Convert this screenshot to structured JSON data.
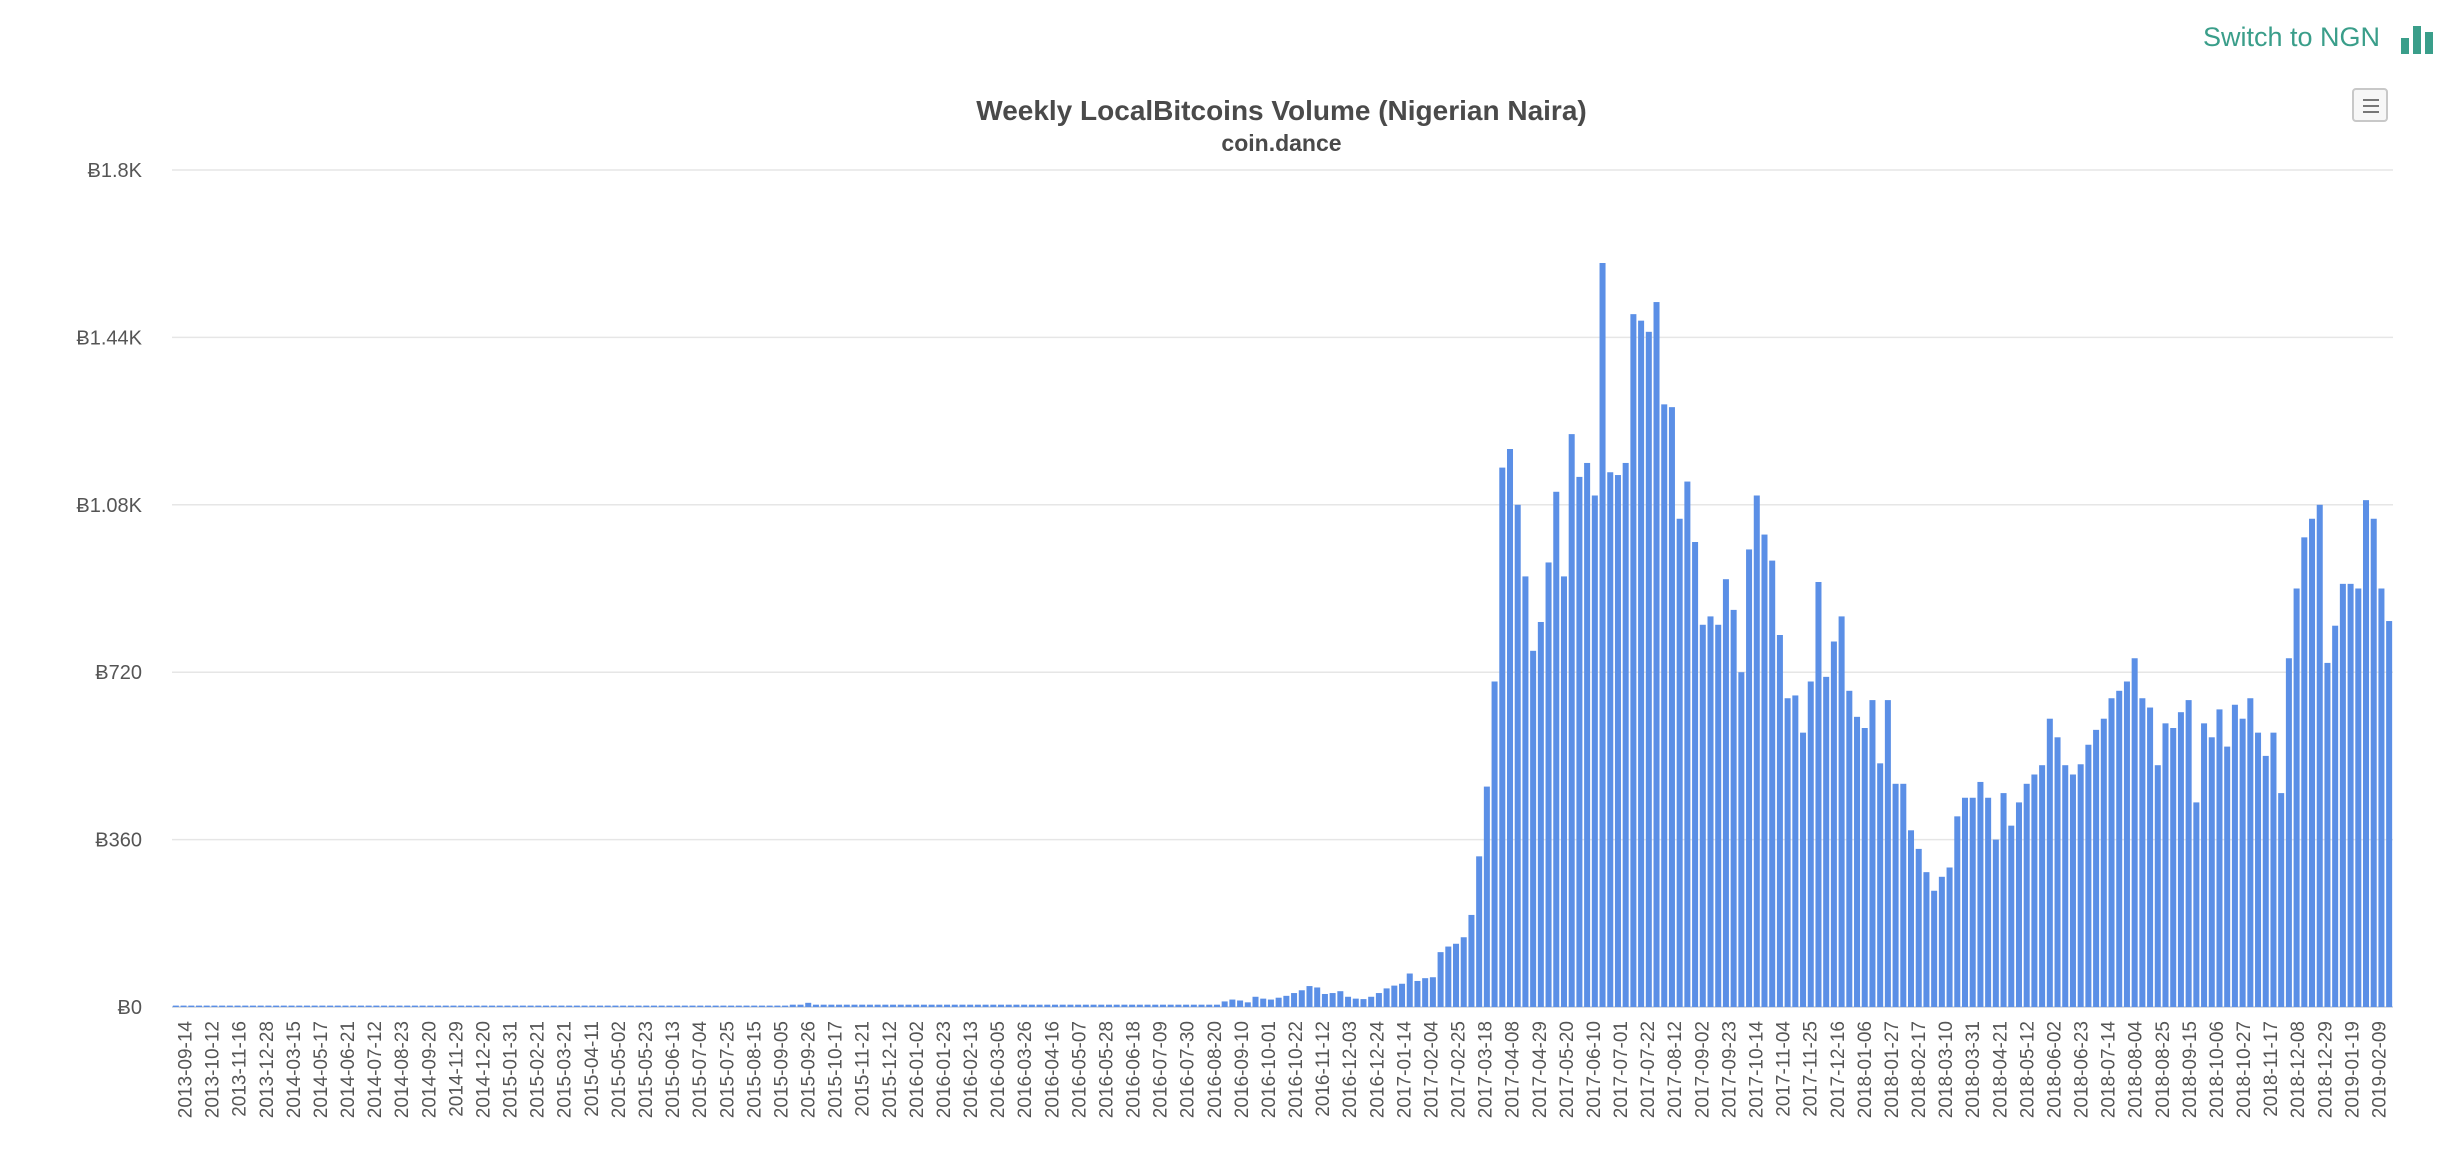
{
  "header": {
    "switch_label": "Switch to NGN",
    "switch_icon": "bar-chart-icon",
    "accent_color": "#3a9e8a"
  },
  "menu": {
    "icon": "hamburger-menu-icon"
  },
  "chart_data": {
    "type": "bar",
    "title": "Weekly LocalBitcoins Volume (Nigerian Naira)",
    "subtitle": "coin.dance",
    "bar_color": "#5b8fe6",
    "grid": true,
    "ylim": [
      0,
      1800
    ],
    "y_ticks": [
      0,
      360,
      720,
      1080,
      1440,
      1800
    ],
    "y_tick_labels": [
      "Ƀ0",
      "Ƀ360",
      "Ƀ720",
      "Ƀ1.08K",
      "Ƀ1.44K",
      "Ƀ1.8K"
    ],
    "x_tick_labels": [
      "2013-09-14",
      "2013-10-12",
      "2013-11-16",
      "2013-12-28",
      "2014-03-15",
      "2014-05-17",
      "2014-06-21",
      "2014-07-12",
      "2014-08-23",
      "2014-09-20",
      "2014-11-29",
      "2014-12-20",
      "2015-01-31",
      "2015-02-21",
      "2015-03-21",
      "2015-04-11",
      "2015-05-02",
      "2015-05-23",
      "2015-06-13",
      "2015-07-04",
      "2015-07-25",
      "2015-08-15",
      "2015-09-05",
      "2015-09-26",
      "2015-10-17",
      "2015-11-21",
      "2015-12-12",
      "2016-01-02",
      "2016-01-23",
      "2016-02-13",
      "2016-03-05",
      "2016-03-26",
      "2016-04-16",
      "2016-05-07",
      "2016-05-28",
      "2016-06-18",
      "2016-07-09",
      "2016-07-30",
      "2016-08-20",
      "2016-09-10",
      "2016-10-01",
      "2016-10-22",
      "2016-11-12",
      "2016-12-03",
      "2016-12-24",
      "2017-01-14",
      "2017-02-04",
      "2017-02-25",
      "2017-03-18",
      "2017-04-08",
      "2017-04-29",
      "2017-05-20",
      "2017-06-10",
      "2017-07-01",
      "2017-07-22",
      "2017-08-12",
      "2017-09-02",
      "2017-09-23",
      "2017-10-14",
      "2017-11-04",
      "2017-11-25",
      "2017-12-16",
      "2018-01-06",
      "2018-01-27",
      "2018-02-17",
      "2018-03-10",
      "2018-03-31",
      "2018-04-21",
      "2018-05-12",
      "2018-06-02",
      "2018-06-23",
      "2018-07-14",
      "2018-08-04",
      "2018-08-25",
      "2018-09-15",
      "2018-10-06",
      "2018-10-27",
      "2018-11-17",
      "2018-12-08",
      "2018-12-29",
      "2019-01-19",
      "2019-02-09"
    ],
    "values": [
      3,
      3,
      3,
      3,
      3,
      3,
      3,
      3,
      3,
      3,
      3,
      3,
      3,
      3,
      3,
      3,
      3,
      3,
      3,
      3,
      3,
      3,
      3,
      3,
      3,
      3,
      3,
      3,
      3,
      3,
      3,
      3,
      3,
      3,
      3,
      3,
      3,
      3,
      3,
      3,
      3,
      3,
      3,
      3,
      3,
      3,
      3,
      3,
      3,
      3,
      3,
      3,
      3,
      3,
      3,
      3,
      3,
      3,
      3,
      3,
      3,
      3,
      3,
      3,
      3,
      3,
      3,
      3,
      3,
      3,
      3,
      3,
      3,
      3,
      3,
      3,
      3,
      3,
      3,
      3,
      5,
      5,
      9,
      5,
      5,
      5,
      5,
      5,
      5,
      5,
      5,
      5,
      5,
      5,
      5,
      5,
      5,
      5,
      5,
      5,
      5,
      5,
      5,
      5,
      5,
      5,
      5,
      5,
      5,
      5,
      5,
      5,
      5,
      5,
      5,
      5,
      5,
      5,
      5,
      5,
      5,
      5,
      5,
      5,
      5,
      5,
      5,
      5,
      5,
      5,
      5,
      5,
      5,
      5,
      5,
      5,
      12,
      16,
      14,
      10,
      22,
      18,
      16,
      20,
      24,
      30,
      36,
      45,
      42,
      28,
      30,
      34,
      22,
      18,
      17,
      22,
      30,
      40,
      46,
      50,
      72,
      56,
      62,
      64,
      118,
      130,
      136,
      150,
      198,
      324,
      474,
      700,
      1160,
      1200,
      1080,
      926,
      766,
      828,
      956,
      1108,
      926,
      1232,
      1140,
      1170,
      1100,
      1600,
      1150,
      1144,
      1170,
      1490,
      1476,
      1452,
      1516,
      1296,
      1290,
      1050,
      1130,
      1000,
      822,
      840,
      822,
      920,
      854,
      720,
      984,
      1100,
      1016,
      960,
      800,
      664,
      670,
      590,
      700,
      914,
      710,
      786,
      840,
      680,
      624,
      600,
      660,
      524,
      660,
      480,
      480,
      380,
      340,
      290,
      250,
      280,
      300,
      410,
      450,
      450,
      484,
      450,
      360,
      460,
      390,
      440,
      480,
      500,
      520,
      620,
      580,
      520,
      500,
      522,
      564,
      596,
      620,
      664,
      680,
      700,
      750,
      664,
      644,
      520,
      610,
      600,
      634,
      660,
      440,
      610,
      580,
      640,
      560,
      650,
      620,
      664,
      590,
      540,
      590,
      460,
      750,
      900,
      1010,
      1050,
      1080,
      740,
      820,
      910,
      910,
      900,
      1090,
      1050,
      900,
      830
    ]
  }
}
